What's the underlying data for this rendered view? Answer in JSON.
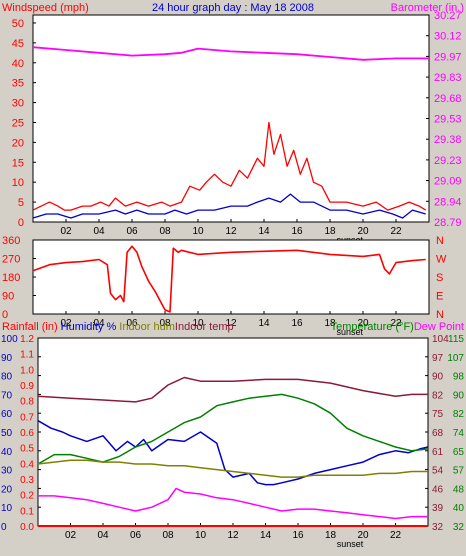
{
  "header": {
    "left_label": "Windspeed (mph)",
    "title": "24 hour graph day : May 18 2008",
    "right_label": "Barometer (in.)"
  },
  "colors": {
    "background": "#d4d0c8",
    "plot_bg": "#ffffff",
    "axis": "#000000",
    "red": "#ff0000",
    "blue": "#0000cc",
    "magenta": "#ff00ff",
    "olive": "#808000",
    "maroon": "#8b1a3a",
    "green": "#008000"
  },
  "sunset_label": "sunset",
  "chart_data": [
    {
      "id": "wind",
      "type": "line",
      "x_ticks": [
        "02",
        "04",
        "06",
        "08",
        "10",
        "12",
        "14",
        "16",
        "18",
        "20",
        "22"
      ],
      "y_left_ticks": [
        "0",
        "5",
        "10",
        "15",
        "20",
        "25",
        "30",
        "35",
        "40",
        "45",
        "50"
      ],
      "ylim_left": [
        0,
        52
      ],
      "y_right_ticks": [
        "28.79",
        "28.94",
        "29.09",
        "29.23",
        "29.38",
        "29.53",
        "29.68",
        "29.83",
        "29.97",
        "30.12",
        "30.27"
      ],
      "ylim_right": [
        28.79,
        30.27
      ],
      "series": [
        {
          "key": "gust",
          "color": "#ff0000",
          "axis": "left",
          "x": [
            0,
            1,
            1.5,
            1.9,
            2.3,
            3,
            3.5,
            4.1,
            4.6,
            5,
            5.6,
            6.3,
            7,
            7.8,
            8.3,
            9,
            9.5,
            10.1,
            10.5,
            11,
            11.5,
            12,
            12.5,
            13,
            13.6,
            14,
            14.3,
            14.6,
            15,
            15.4,
            15.8,
            16.2,
            16.6,
            17,
            17.5,
            18,
            18.5,
            19,
            20,
            20.8,
            21.5,
            22.2,
            22.8,
            23.4,
            23.8
          ],
          "y": [
            3,
            5,
            4,
            3,
            3,
            4,
            4,
            5,
            4,
            6,
            4,
            5,
            4,
            5,
            4,
            5,
            9,
            8,
            10,
            12,
            10,
            9,
            13,
            11,
            16,
            14,
            25,
            17,
            22,
            14,
            18,
            12,
            16,
            10,
            9,
            5,
            5,
            5,
            4,
            5,
            3,
            4,
            5,
            4,
            3
          ]
        },
        {
          "key": "wind",
          "color": "#0000cc",
          "axis": "left",
          "x": [
            0,
            0.8,
            1.5,
            2.3,
            3,
            4,
            5,
            5.6,
            6.3,
            7,
            8,
            8.6,
            9.3,
            10,
            11,
            12,
            13,
            13.6,
            14.3,
            15,
            15.6,
            16.2,
            17,
            18,
            19,
            20,
            21,
            21.8,
            22.4,
            23,
            23.8
          ],
          "y": [
            1,
            2,
            2,
            1,
            2,
            2,
            3,
            2,
            3,
            2,
            2,
            3,
            2,
            3,
            3,
            4,
            4,
            5,
            6,
            5,
            7,
            5,
            5,
            3,
            3,
            2,
            3,
            2,
            1,
            3,
            2
          ]
        },
        {
          "key": "barometer",
          "color": "#ff00ff",
          "axis": "right",
          "x": [
            0,
            2,
            4,
            6,
            8,
            9,
            10,
            12,
            14,
            16,
            18,
            20,
            22,
            24
          ],
          "y": [
            30.04,
            30.02,
            30.0,
            29.98,
            29.99,
            30.0,
            30.03,
            30.01,
            30.0,
            29.99,
            29.97,
            29.95,
            29.96,
            29.96
          ]
        }
      ]
    },
    {
      "id": "direction",
      "type": "line",
      "x_ticks": [
        "02",
        "04",
        "06",
        "08",
        "10",
        "12",
        "14",
        "16",
        "18",
        "20",
        "22"
      ],
      "y_left_ticks": [
        "360",
        "270",
        "180",
        "90",
        "0"
      ],
      "ylim_left": [
        0,
        360
      ],
      "y_right_ticks": [
        "N",
        "W",
        "S",
        "E",
        "N"
      ],
      "series": [
        {
          "key": "direction",
          "color": "#ff0000",
          "x": [
            0,
            1,
            2,
            3,
            4,
            4.5,
            4.7,
            5,
            5.3,
            5.5,
            5.7,
            6,
            6.3,
            6.6,
            7,
            7.4,
            7.8,
            8,
            8.3,
            8.5,
            8.8,
            9,
            10,
            12,
            14,
            16,
            18,
            20,
            21,
            21.3,
            21.6,
            22,
            23,
            23.8
          ],
          "y": [
            210,
            240,
            250,
            255,
            265,
            240,
            100,
            70,
            90,
            60,
            300,
            330,
            300,
            230,
            160,
            110,
            50,
            20,
            10,
            320,
            300,
            310,
            290,
            300,
            305,
            310,
            290,
            280,
            290,
            220,
            195,
            250,
            260,
            265
          ]
        }
      ]
    },
    {
      "id": "humidity_temperature",
      "type": "line",
      "x_ticks": [
        "02",
        "04",
        "06",
        "08",
        "10",
        "12",
        "14",
        "16",
        "18",
        "20",
        "22"
      ],
      "left_labels": [
        "Rainfall (in)",
        "Humidity %",
        "Indoor hum",
        "Indoor temp"
      ],
      "right_labels": [
        "Temperature (°F)",
        "Dew Point"
      ],
      "y_rain_ticks": [
        "0.0",
        "0.1",
        "0.2",
        "0.3",
        "0.4",
        "0.5",
        "0.6",
        "0.7",
        "0.8",
        "0.9",
        "1.0",
        "1.1",
        "1.2"
      ],
      "y_hum_ticks": [
        "0",
        "10",
        "20",
        "30",
        "40",
        "50",
        "60",
        "70",
        "80",
        "90",
        "100"
      ],
      "y_dew_ticks": [
        "32",
        "39",
        "46",
        "54",
        "61",
        "68",
        "75",
        "82",
        "90",
        "97",
        "104"
      ],
      "y_temp_ticks": [
        "32",
        "40",
        "48",
        "57",
        "65",
        "74",
        "82",
        "90",
        "98",
        "107",
        "115"
      ],
      "ylim": [
        0,
        100
      ],
      "series": [
        {
          "key": "indoor_temp",
          "color": "#8b1a3a",
          "x": [
            0,
            2,
            4,
            6,
            7,
            8,
            9,
            10,
            12,
            14,
            16,
            18,
            20,
            22,
            23,
            24
          ],
          "y": [
            69,
            68,
            67,
            66,
            68,
            75,
            79,
            77,
            77,
            78,
            78,
            76,
            72,
            69,
            70,
            70
          ]
        },
        {
          "key": "humidity",
          "color": "#0000cc",
          "x": [
            0,
            0.8,
            1.5,
            2,
            3,
            4,
            4.8,
            5.5,
            6,
            6.5,
            7,
            8,
            9,
            10,
            11,
            11.5,
            12,
            13,
            13.5,
            14,
            14.5,
            15,
            16,
            17,
            18,
            19,
            20,
            21,
            22,
            22.8,
            23.5,
            24
          ],
          "y": [
            56,
            52,
            50,
            48,
            45,
            48,
            40,
            45,
            42,
            46,
            40,
            46,
            45,
            50,
            44,
            30,
            26,
            28,
            23,
            22,
            22,
            23,
            25,
            28,
            30,
            32,
            34,
            38,
            40,
            39,
            41,
            42
          ]
        },
        {
          "key": "temperature",
          "color": "#008000",
          "x": [
            0,
            1,
            2,
            3,
            4,
            5,
            6,
            7,
            8,
            9,
            10,
            11,
            12,
            13,
            14,
            15,
            16,
            17,
            18,
            19,
            20,
            21,
            22,
            23,
            24
          ],
          "y": [
            33,
            38,
            38,
            36,
            34,
            37,
            42,
            45,
            50,
            55,
            58,
            64,
            66,
            68,
            69,
            70,
            68,
            65,
            60,
            52,
            48,
            45,
            42,
            40,
            41
          ]
        },
        {
          "key": "indoor_hum",
          "color": "#808000",
          "x": [
            0,
            1,
            2,
            3,
            4,
            5,
            6,
            7,
            8,
            9,
            10,
            11,
            12,
            13,
            14,
            15,
            16,
            17,
            18,
            19,
            20,
            21,
            22,
            23,
            24
          ],
          "y": [
            33,
            34,
            35,
            35,
            34,
            34,
            33,
            33,
            32,
            32,
            31,
            30,
            29,
            28,
            27,
            26,
            26,
            27,
            27,
            27,
            27,
            28,
            28,
            29,
            29
          ]
        },
        {
          "key": "dew_point",
          "color": "#ff00ff",
          "x": [
            0,
            1,
            2,
            3,
            4,
            5,
            6,
            7,
            8,
            8.5,
            9,
            10,
            11,
            12,
            13,
            14,
            15,
            16,
            17,
            18,
            19,
            20,
            21,
            22,
            23,
            24
          ],
          "y": [
            16,
            16,
            15,
            14,
            12,
            10,
            8,
            10,
            14,
            20,
            18,
            17,
            15,
            14,
            12,
            10,
            8,
            9,
            9,
            8,
            7,
            6,
            5,
            4,
            5,
            5
          ]
        },
        {
          "key": "rainfall",
          "color": "#ff0000",
          "x": [
            0,
            24
          ],
          "y": [
            0,
            0
          ]
        }
      ]
    }
  ]
}
